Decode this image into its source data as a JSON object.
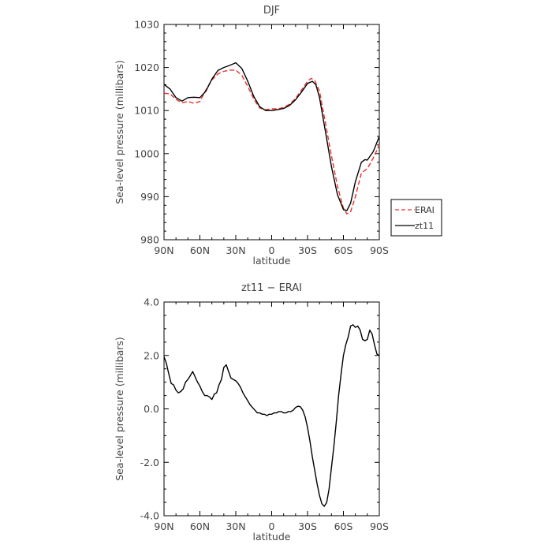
{
  "chart_data": [
    {
      "type": "line",
      "title": "DJF",
      "xlabel": "latitude",
      "ylabel": "Sea-level pressure (millibars)",
      "xlim": [
        90,
        -90
      ],
      "ylim": [
        980,
        1030
      ],
      "yticks": [
        "980",
        "990",
        "1000",
        "1010",
        "1020",
        "1030"
      ],
      "xticks": [
        "90N",
        "60N",
        "30N",
        "0",
        "30S",
        "60S",
        "90S"
      ],
      "legend": {
        "placement": "right"
      },
      "series": [
        {
          "name": "ERAI",
          "color": "#e8302c",
          "dash": "dashed",
          "x": [
            90,
            85,
            80,
            75,
            70,
            65,
            60,
            55,
            50,
            45,
            40,
            35,
            30,
            25,
            20,
            15,
            10,
            5,
            0,
            -5,
            -10,
            -15,
            -20,
            -25,
            -30,
            -33,
            -36,
            -40,
            -45,
            -50,
            -55,
            -60,
            -63,
            -66,
            -70,
            -75,
            -80,
            -85,
            -90
          ],
          "y": [
            1014,
            1013.9,
            1012.6,
            1011.8,
            1012.1,
            1011.7,
            1012.1,
            1014.8,
            1017.1,
            1018.5,
            1019.1,
            1019.4,
            1019.4,
            1018.2,
            1015.6,
            1012.7,
            1010.6,
            1010.2,
            1010.4,
            1010.4,
            1010.7,
            1011.5,
            1012.8,
            1014.8,
            1016.8,
            1017.5,
            1017.0,
            1014.5,
            1007.0,
            999.5,
            992.5,
            987.3,
            986.0,
            986.5,
            990.0,
            995.5,
            996.5,
            999.0,
            1002.0
          ]
        },
        {
          "name": "zt11",
          "color": "#000000",
          "dash": "solid",
          "x": [
            90,
            85,
            80,
            75,
            70,
            65,
            60,
            55,
            50,
            45,
            40,
            35,
            30,
            25,
            20,
            15,
            10,
            5,
            0,
            -5,
            -10,
            -15,
            -20,
            -25,
            -30,
            -34,
            -37,
            -40,
            -45,
            -50,
            -55,
            -60,
            -63,
            -66,
            -70,
            -75,
            -78,
            -80,
            -85,
            -90
          ],
          "y": [
            1016.1,
            1015,
            1013,
            1012.2,
            1013,
            1013.1,
            1013,
            1014.5,
            1017.3,
            1019.3,
            1020,
            1020.5,
            1021.1,
            1019.8,
            1016.8,
            1013.3,
            1010.9,
            1010.0,
            1010.0,
            1010.2,
            1010.5,
            1011.2,
            1012.5,
            1014.3,
            1016.3,
            1016.8,
            1016.0,
            1013.0,
            1005.0,
            997.0,
            990.5,
            987.0,
            986.8,
            988.5,
            993.5,
            998.0,
            998.6,
            998.5,
            1000.5,
            1004.0
          ]
        }
      ]
    },
    {
      "type": "line",
      "title": "zt11 − ERAI",
      "xlabel": "latitude",
      "ylabel": "Sea-level pressure (millibars)",
      "xlim": [
        90,
        -90
      ],
      "ylim": [
        -4,
        4
      ],
      "yticks": [
        "-4.0",
        "-2.0",
        "0.0",
        "2.0",
        "4.0"
      ],
      "xticks": [
        "90N",
        "60N",
        "30N",
        "0",
        "30S",
        "60S",
        "90S"
      ],
      "series": [
        {
          "name": "",
          "color": "#000000",
          "dash": "solid",
          "x": [
            90,
            88,
            86,
            84,
            82,
            80,
            78,
            76,
            74,
            72,
            70,
            68,
            66,
            64,
            62,
            60,
            58,
            56,
            54,
            52,
            50,
            48,
            46,
            44,
            42,
            40,
            38,
            36,
            34,
            32,
            30,
            28,
            26,
            24,
            22,
            20,
            18,
            16,
            14,
            12,
            10,
            8,
            6,
            4,
            2,
            0,
            -2,
            -4,
            -6,
            -8,
            -10,
            -12,
            -14,
            -16,
            -18,
            -20,
            -22,
            -24,
            -26,
            -28,
            -30,
            -32,
            -34,
            -36,
            -38,
            -40,
            -42,
            -44,
            -46,
            -48,
            -50,
            -52,
            -54,
            -56,
            -58,
            -60,
            -62,
            -64,
            -66,
            -68,
            -70,
            -72,
            -74,
            -76,
            -78,
            -80,
            -82,
            -84,
            -86,
            -88,
            -90
          ],
          "y": [
            1.95,
            1.7,
            1.3,
            0.95,
            0.9,
            0.7,
            0.6,
            0.65,
            0.75,
            1.0,
            1.1,
            1.25,
            1.4,
            1.2,
            1.0,
            0.85,
            0.65,
            0.5,
            0.5,
            0.45,
            0.35,
            0.55,
            0.6,
            0.9,
            1.1,
            1.55,
            1.65,
            1.4,
            1.15,
            1.1,
            1.05,
            0.95,
            0.8,
            0.6,
            0.45,
            0.3,
            0.15,
            0.05,
            -0.05,
            -0.15,
            -0.15,
            -0.2,
            -0.2,
            -0.25,
            -0.2,
            -0.2,
            -0.15,
            -0.15,
            -0.1,
            -0.1,
            -0.15,
            -0.15,
            -0.1,
            -0.1,
            -0.05,
            0.05,
            0.1,
            0.08,
            -0.05,
            -0.3,
            -0.7,
            -1.2,
            -1.8,
            -2.3,
            -2.8,
            -3.25,
            -3.55,
            -3.65,
            -3.5,
            -3.0,
            -2.2,
            -1.4,
            -0.5,
            0.5,
            1.3,
            2.0,
            2.4,
            2.7,
            3.1,
            3.15,
            3.05,
            3.1,
            2.95,
            2.6,
            2.55,
            2.6,
            2.95,
            2.8,
            2.4,
            2.05,
            2.0
          ]
        }
      ]
    }
  ]
}
